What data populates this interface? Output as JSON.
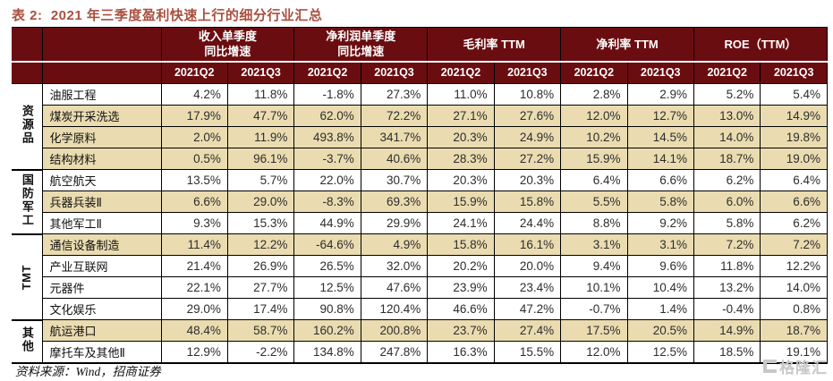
{
  "title": "表 2:  2021 年三季度盈利快速上行的细分行业汇总",
  "source_note": "资料来源：Wind，招商证券",
  "watermark": "格隆汇",
  "colors": {
    "header_bg": "#6A0D10",
    "highlight_row_bg": "#EADCB0",
    "title_color": "#A8503F",
    "border": "#000000",
    "watermark": "#C8C8C8"
  },
  "table": {
    "column_groups": [
      {
        "line1": "收入单季度",
        "line2": "同比增速"
      },
      {
        "line1": "净利润单季度",
        "line2": "同比增速"
      },
      {
        "line1": "毛利率 TTM",
        "line2": ""
      },
      {
        "line1": "净利率 TTM",
        "line2": ""
      },
      {
        "line1": "ROE（TTM）",
        "line2": ""
      }
    ],
    "subheaders": [
      "2021Q2",
      "2021Q3",
      "2021Q2",
      "2021Q3",
      "2021Q2",
      "2021Q3",
      "2021Q2",
      "2021Q3",
      "2021Q2",
      "2021Q3"
    ],
    "groups": [
      {
        "label": "资源品",
        "rows": [
          {
            "name": "油服工程",
            "highlight": false,
            "values": [
              "4.2%",
              "11.8%",
              "-1.8%",
              "27.3%",
              "11.0%",
              "10.8%",
              "2.8%",
              "2.9%",
              "5.2%",
              "5.4%"
            ]
          },
          {
            "name": "煤炭开采洗选",
            "highlight": true,
            "values": [
              "17.9%",
              "47.7%",
              "62.0%",
              "72.2%",
              "27.1%",
              "27.6%",
              "12.0%",
              "12.7%",
              "13.0%",
              "14.9%"
            ]
          },
          {
            "name": "化学原料",
            "highlight": true,
            "values": [
              "2.0%",
              "11.9%",
              "493.8%",
              "341.7%",
              "20.3%",
              "24.9%",
              "10.2%",
              "14.5%",
              "14.0%",
              "19.8%"
            ]
          },
          {
            "name": "结构材料",
            "highlight": true,
            "values": [
              "0.5%",
              "96.1%",
              "-3.7%",
              "40.6%",
              "28.3%",
              "27.2%",
              "15.9%",
              "14.1%",
              "18.7%",
              "19.0%"
            ]
          }
        ]
      },
      {
        "label": "国防军工",
        "rows": [
          {
            "name": "航空航天",
            "highlight": false,
            "values": [
              "13.5%",
              "5.7%",
              "22.0%",
              "30.7%",
              "20.3%",
              "20.3%",
              "6.4%",
              "6.6%",
              "6.2%",
              "6.4%"
            ]
          },
          {
            "name": "兵器兵装Ⅱ",
            "highlight": true,
            "values": [
              "6.6%",
              "29.0%",
              "-8.3%",
              "69.3%",
              "15.9%",
              "15.8%",
              "5.5%",
              "5.8%",
              "6.0%",
              "6.6%"
            ]
          },
          {
            "name": "其他军工Ⅱ",
            "highlight": false,
            "values": [
              "9.3%",
              "15.3%",
              "44.9%",
              "29.9%",
              "24.1%",
              "24.4%",
              "8.8%",
              "9.2%",
              "5.8%",
              "6.2%"
            ]
          }
        ]
      },
      {
        "label": "TMT",
        "rows": [
          {
            "name": "通信设备制造",
            "highlight": true,
            "values": [
              "11.4%",
              "12.2%",
              "-64.6%",
              "4.9%",
              "15.8%",
              "16.1%",
              "3.1%",
              "3.1%",
              "7.2%",
              "7.2%"
            ]
          },
          {
            "name": "产业互联网",
            "highlight": false,
            "values": [
              "21.4%",
              "26.9%",
              "26.5%",
              "32.0%",
              "20.2%",
              "20.0%",
              "9.4%",
              "9.6%",
              "11.8%",
              "12.2%"
            ]
          },
          {
            "name": "元器件",
            "highlight": false,
            "values": [
              "22.1%",
              "27.7%",
              "12.5%",
              "47.6%",
              "23.9%",
              "23.4%",
              "10.1%",
              "10.4%",
              "13.2%",
              "14.0%"
            ]
          },
          {
            "name": "文化娱乐",
            "highlight": false,
            "values": [
              "29.0%",
              "17.4%",
              "90.8%",
              "120.4%",
              "46.6%",
              "47.2%",
              "-0.7%",
              "1.4%",
              "-0.4%",
              "0.8%"
            ]
          }
        ]
      },
      {
        "label": "其他",
        "rows": [
          {
            "name": "航运港口",
            "highlight": true,
            "values": [
              "48.4%",
              "58.7%",
              "160.2%",
              "200.8%",
              "23.7%",
              "27.4%",
              "17.5%",
              "20.5%",
              "14.9%",
              "18.7%"
            ]
          },
          {
            "name": "摩托车及其他Ⅱ",
            "highlight": false,
            "values": [
              "12.9%",
              "-2.2%",
              "134.8%",
              "247.8%",
              "16.3%",
              "15.5%",
              "12.0%",
              "12.5%",
              "18.5%",
              "19.1%"
            ]
          }
        ]
      }
    ]
  }
}
